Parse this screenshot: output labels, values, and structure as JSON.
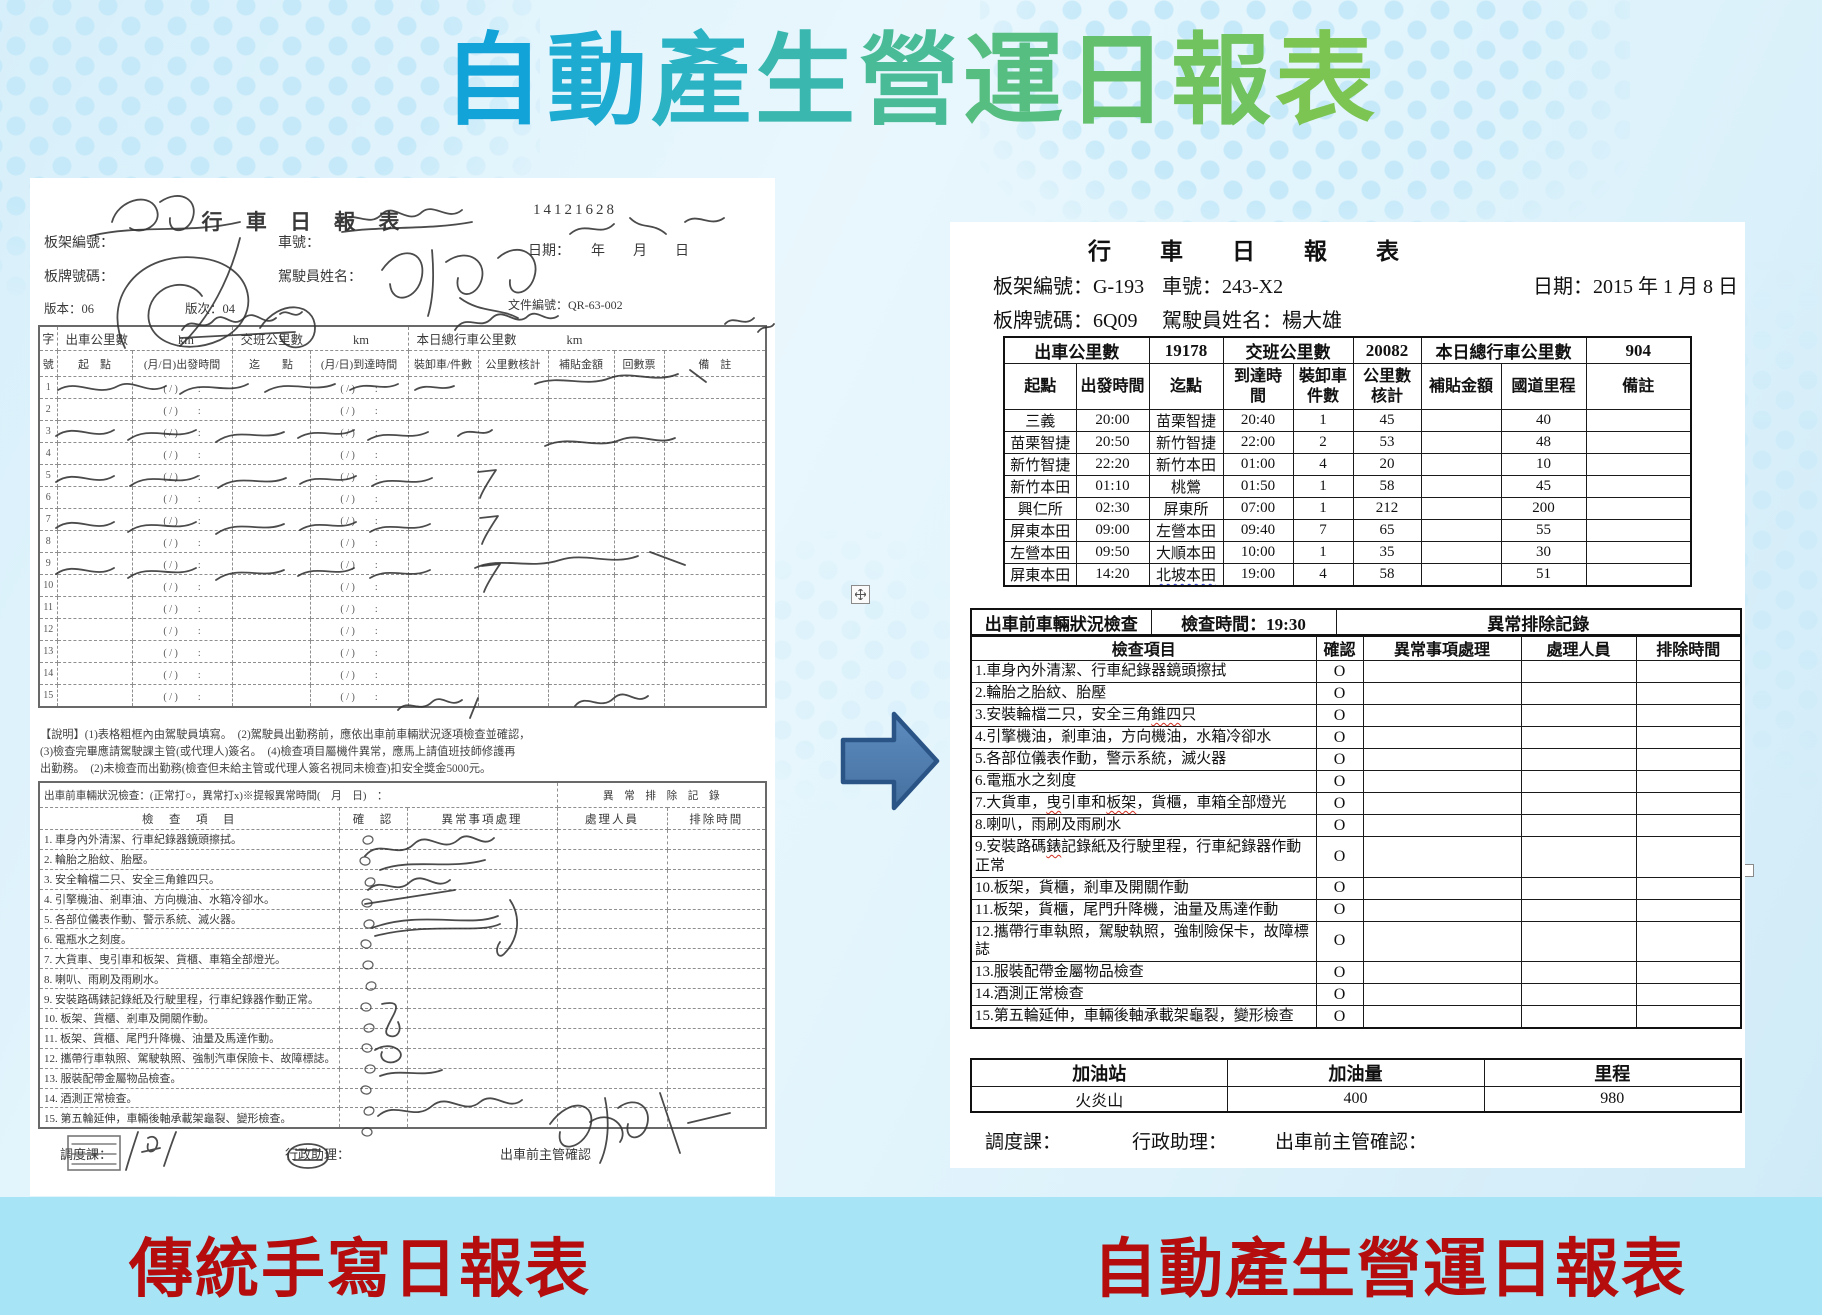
{
  "slide": {
    "title": "自動產生營運日報表",
    "caption_left": "傳統手寫日報表",
    "caption_right": "自動產生營運日報表"
  },
  "colors": {
    "title_gradient": [
      "#12a3d8",
      "#1dabd2",
      "#2bb2c3",
      "#3ab7ae",
      "#49bb97",
      "#57be81",
      "#64c06d",
      "#70c35e",
      "#7cc553"
    ],
    "caption_red": "#b50d0d",
    "arrow_fill": "#4b78ad",
    "arrow_border": "#2a5486",
    "bottom_band": "#a6e4f6",
    "dot_blue": "#c6e9f9"
  },
  "left_form": {
    "title": "行 車 日 報 表",
    "serial": "14121628",
    "fields": {
      "frame_no": "板架編號：",
      "car_no": "車號：",
      "date_line": "日期：　　年　　月　　日",
      "plate_no": "板牌號碼：",
      "driver": "駕駛員姓名：",
      "version": "版本：06",
      "revision": "版次：04",
      "doc_no": "文件編號：QR-63-002"
    },
    "band_corner": "字",
    "mileage_band": [
      {
        "label": "出車公里數",
        "unit": "km"
      },
      {
        "label": "交班公里數",
        "unit": "km"
      },
      {
        "label": "本日總行車公里數",
        "unit": "km"
      }
    ],
    "columns": [
      "號",
      "起　點",
      "(月/日)出發時間",
      "迄　　點",
      "(月/日)到達時間",
      "裝卸車/件數",
      "公里數核計",
      "補貼金額",
      "回數票",
      "備　註"
    ],
    "row_count": 15,
    "time_placeholder": "( / )　　:",
    "notes": [
      "【說明】(1)表格粗框內由駕駛員填寫。　(2)駕駛員出勤務前，應依出車前車輛狀況逐項檢查並確認，",
      "(3)檢查完畢應請駕駛課主管(或代理人)簽名。　(4)檢查項目屬機件異常，應馬上請值班技師修護再",
      "出勤務。　(2)未檢查而出勤務(檢查但未給主管或代理人簽名視同未檢查)扣安全獎金5000元。"
    ],
    "check_header_left": "出車前車輛狀況檢查：(正常打○，異常打x)※提報異常時間(　月　日)　：",
    "check_header_right": "異　常　排　除　記　錄",
    "check_columns": [
      "檢　查　項　目",
      "確　認",
      "異常事項處理",
      "處理人員",
      "排除時間"
    ],
    "check_items": [
      "1. 車身內外清潔、行車紀錄器鏡頭擦拭。",
      "2. 輪胎之胎紋、胎壓。",
      "3. 安全輪檔二只、安全三角錐四只。",
      "4. 引擎機油、剎車油、方向機油、水箱冷卻水。",
      "5. 各部位儀表作動、警示系統、滅火器。",
      "6. 電瓶水之刻度。",
      "7. 大貨車、曳引車和板架、貨櫃、車箱全部燈光。",
      "8. 喇叭、雨刷及雨刷水。",
      "9. 安裝路碼錶記錄紙及行駛里程，行車紀錄器作動正常。",
      "10. 板架、貨櫃、剎車及開關作動。",
      "11. 板架、貨櫃、尾門升降機、油量及馬達作動。",
      "12. 攜帶行車執照、駕駛執照、強制汽車保險卡、故障標誌。",
      "13. 服裝配帶金屬物品檢查。",
      "14. 酒測正常檢查。",
      "15. 第五輪延伸，車輛後軸承載架龜裂、變形檢查。"
    ],
    "footer": [
      "調度課：",
      "行政助理：",
      "出車前主管確認"
    ]
  },
  "right_form": {
    "title": "行　車　日　報　表",
    "info_line1": [
      {
        "label": "板架編號：",
        "value": "G-193"
      },
      {
        "label": "車號：",
        "value": "243-X2"
      },
      {
        "label": "日期：",
        "value": "2015 年 1 月 8 日"
      }
    ],
    "info_line2": [
      {
        "label": "板牌號碼：",
        "value": "6Q09"
      },
      {
        "label": "駕駛員姓名：",
        "value": "楊大雄"
      }
    ],
    "trip_table": {
      "summary": [
        {
          "text": "出車公里數",
          "span": 2
        },
        {
          "text": "19178",
          "span": 1
        },
        {
          "text": "交班公里數",
          "span": 2
        },
        {
          "text": "20082",
          "span": 1
        },
        {
          "text": "本日總行車公里數",
          "span": 2
        },
        {
          "text": "904",
          "span": 1
        }
      ],
      "columns": [
        "起點",
        "出發時間",
        "迄點",
        "到達時間",
        "裝卸車件數",
        "公里數核計",
        "補貼金額",
        "國道里程",
        "備註"
      ],
      "rows": [
        [
          "三義",
          "20:00",
          "苗栗智捷",
          "20:40",
          "1",
          "45",
          "",
          "40",
          ""
        ],
        [
          "苗栗智捷",
          "20:50",
          "新竹智捷",
          "22:00",
          "2",
          "53",
          "",
          "48",
          ""
        ],
        [
          "新竹智捷",
          "22:20",
          "新竹本田",
          "01:00",
          "4",
          "20",
          "",
          "10",
          ""
        ],
        [
          "新竹本田",
          "01:10",
          "桃鶯",
          "01:50",
          "1",
          "58",
          "",
          "45",
          ""
        ],
        [
          "興仁所",
          "02:30",
          "屏東所",
          "07:00",
          "1",
          "212",
          "",
          "200",
          ""
        ],
        [
          "屏東本田",
          "09:00",
          "左營本田",
          "09:40",
          "7",
          "65",
          "",
          "55",
          ""
        ],
        [
          "左營本田",
          "09:50",
          "大順本田",
          "10:00",
          "1",
          "35",
          "",
          "30",
          ""
        ],
        [
          "屏東本田",
          "14:20",
          "北坡本田",
          "19:00",
          "4",
          "58",
          "",
          "51",
          ""
        ]
      ],
      "wavy_cell": {
        "row": 8,
        "col": 2
      }
    },
    "inspection": {
      "header_left": "出車前車輛狀況檢查",
      "header_time": "檢查時間：19:30",
      "header_right": "異常排除記錄",
      "columns": [
        "檢查項目",
        "確認",
        "異常事項處理",
        "處理人員",
        "排除時間"
      ],
      "items": [
        {
          "text": "1.車身內外清潔、行車紀錄器鏡頭擦拭",
          "confirm": "O"
        },
        {
          "text": "2.輪胎之胎紋、胎壓",
          "confirm": "O"
        },
        {
          "text": "3.安裝輪檔二只，安全三角錐四只",
          "confirm": "O",
          "wavy": [
            "錐四"
          ]
        },
        {
          "text": "4.引擎機油，剎車油，方向機油，水箱冷卻水",
          "confirm": "O"
        },
        {
          "text": "5.各部位儀表作動，警示系統，滅火器",
          "confirm": "O"
        },
        {
          "text": "6.電瓶水之刻度",
          "confirm": "O"
        },
        {
          "text": "7.大貨車，曳引車和板架，貨櫃，車箱全部燈光",
          "confirm": "O",
          "wavy": [
            "曳",
            "板架"
          ]
        },
        {
          "text": "8.喇叭，雨刷及雨刷水",
          "confirm": "O"
        },
        {
          "text": "9.安裝路碼錶記錄紙及行駛里程，行車紀錄器作動正常",
          "confirm": "O",
          "wavy": [
            "錶"
          ]
        },
        {
          "text": "10.板架，貨櫃，剎車及開關作動",
          "confirm": "O"
        },
        {
          "text": "11.板架，貨櫃，尾門升降機，油量及馬達作動",
          "confirm": "O"
        },
        {
          "text": "12.攜帶行車執照，駕駛執照，強制險保卡，故障標誌",
          "confirm": "O"
        },
        {
          "text": "13.服裝配帶金屬物品檢查",
          "confirm": "O"
        },
        {
          "text": "14.酒測正常檢查",
          "confirm": "O"
        },
        {
          "text": "15.第五輪延伸，車輛後軸承載架龜裂，變形檢查",
          "confirm": "O"
        }
      ]
    },
    "fuel_table": {
      "columns": [
        "加油站",
        "加油量",
        "里程"
      ],
      "rows": [
        [
          "火炎山",
          "400",
          "980"
        ]
      ]
    },
    "footer": [
      "調度課：",
      "行政助理：",
      "出車前主管確認："
    ]
  }
}
